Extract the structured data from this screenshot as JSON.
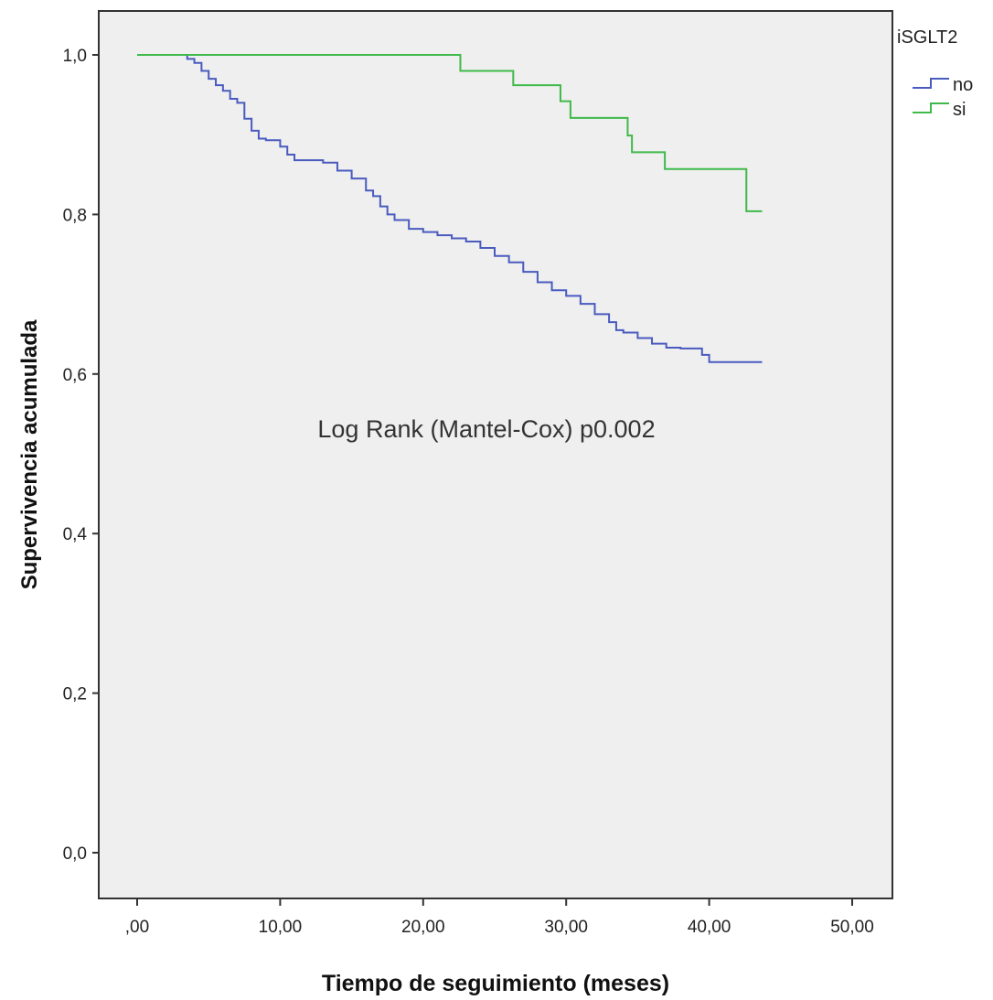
{
  "chart_data": {
    "type": "line",
    "step": true,
    "title": "",
    "xlabel": "Tiempo de seguimiento (meses)",
    "ylabel": "Supervivencia acumulada",
    "xlim": [
      0,
      50
    ],
    "ylim": [
      0,
      1
    ],
    "x_ticks": [
      ",00",
      "10,00",
      "20,00",
      "30,00",
      "40,00",
      "50,00"
    ],
    "x_tick_values": [
      0,
      10,
      20,
      30,
      40,
      50
    ],
    "y_ticks": [
      "0,0",
      "0,2",
      "0,4",
      "0,6",
      "0,8",
      "1,0"
    ],
    "y_tick_values": [
      0,
      0.2,
      0.4,
      0.6,
      0.8,
      1.0
    ],
    "grid": false,
    "legend": {
      "title": "iSGLT2",
      "position": "top-right outside"
    },
    "annotation": "Log Rank (Mantel-Cox) p0.002",
    "background": "#efefef",
    "series": [
      {
        "name": "no",
        "color": "#4a5bbf",
        "x": [
          0,
          3,
          3.5,
          4,
          4.5,
          5,
          5.5,
          6,
          6.5,
          7,
          7.5,
          8,
          8.5,
          9,
          10,
          10.5,
          11,
          12,
          13,
          14,
          15,
          16,
          16.5,
          17,
          17.5,
          18,
          19,
          20,
          21,
          22,
          23,
          24,
          25,
          26,
          27,
          28,
          29,
          30,
          31,
          32,
          33,
          33.5,
          34,
          35,
          36,
          37,
          38,
          39.5,
          40,
          43.7
        ],
        "y": [
          1.0,
          1.0,
          0.995,
          0.99,
          0.98,
          0.97,
          0.962,
          0.955,
          0.945,
          0.94,
          0.92,
          0.905,
          0.895,
          0.893,
          0.885,
          0.875,
          0.868,
          0.868,
          0.865,
          0.855,
          0.845,
          0.83,
          0.823,
          0.81,
          0.8,
          0.793,
          0.782,
          0.778,
          0.774,
          0.77,
          0.766,
          0.758,
          0.748,
          0.74,
          0.728,
          0.715,
          0.705,
          0.698,
          0.688,
          0.675,
          0.665,
          0.655,
          0.652,
          0.645,
          0.638,
          0.633,
          0.632,
          0.624,
          0.615,
          0.615
        ]
      },
      {
        "name": "si",
        "color": "#3fb94a",
        "x": [
          0,
          22.6,
          26.3,
          29.6,
          30.3,
          34.3,
          34.6,
          36.9,
          42.6,
          43.7
        ],
        "y": [
          1.0,
          0.98,
          0.962,
          0.942,
          0.921,
          0.899,
          0.878,
          0.857,
          0.804,
          0.804
        ]
      }
    ]
  }
}
